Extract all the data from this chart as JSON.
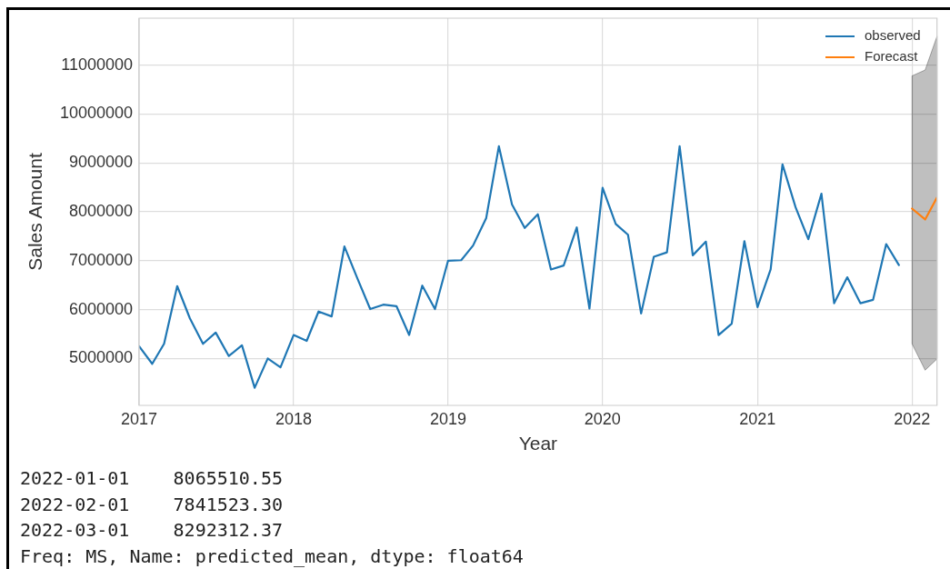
{
  "chart_data": {
    "type": "line",
    "xlabel": "Year",
    "ylabel": "Sales Amount",
    "x": [
      "2017-01",
      "2017-02",
      "2017-03",
      "2017-04",
      "2017-05",
      "2017-06",
      "2017-07",
      "2017-08",
      "2017-09",
      "2017-10",
      "2017-11",
      "2017-12",
      "2018-01",
      "2018-02",
      "2018-03",
      "2018-04",
      "2018-05",
      "2018-06",
      "2018-07",
      "2018-08",
      "2018-09",
      "2018-10",
      "2018-11",
      "2018-12",
      "2019-01",
      "2019-02",
      "2019-03",
      "2019-04",
      "2019-05",
      "2019-06",
      "2019-07",
      "2019-08",
      "2019-09",
      "2019-10",
      "2019-11",
      "2019-12",
      "2020-01",
      "2020-02",
      "2020-03",
      "2020-04",
      "2020-05",
      "2020-06",
      "2020-07",
      "2020-08",
      "2020-09",
      "2020-10",
      "2020-11",
      "2020-12",
      "2021-01",
      "2021-02",
      "2021-03",
      "2021-04",
      "2021-05",
      "2021-06",
      "2021-07",
      "2021-08",
      "2021-09",
      "2021-10",
      "2021-11",
      "2021-12"
    ],
    "series": [
      {
        "name": "observed",
        "color": "#1f77b4",
        "values": [
          5250000,
          4890000,
          5300000,
          6480000,
          5820000,
          5300000,
          5530000,
          5050000,
          5270000,
          4400000,
          5000000,
          4820000,
          5480000,
          5360000,
          5960000,
          5860000,
          7290000,
          6630000,
          6010000,
          6100000,
          6070000,
          5480000,
          6490000,
          6010000,
          7000000,
          7010000,
          7310000,
          7870000,
          9340000,
          8150000,
          7670000,
          7950000,
          6820000,
          6900000,
          7680000,
          6020000,
          8490000,
          7750000,
          7530000,
          5920000,
          7080000,
          7170000,
          9340000,
          7110000,
          7390000,
          5480000,
          5710000,
          7400000,
          6050000,
          6820000,
          8970000,
          8090000,
          7440000,
          8370000,
          6130000,
          6660000,
          6130000,
          6200000,
          7340000,
          6910000
        ]
      },
      {
        "name": "Forecast",
        "color": "#ff7f0e",
        "x": [
          "2022-01",
          "2022-02",
          "2022-03"
        ],
        "values": [
          8065510.55,
          7841523.3,
          8292312.37
        ],
        "lower": [
          5300000,
          4760000,
          4990000
        ],
        "upper": [
          10780000,
          10900000,
          11590000
        ]
      }
    ],
    "xlim": [
      "2017-01",
      "2022-03"
    ],
    "xticks": [
      "2017",
      "2018",
      "2019",
      "2020",
      "2021",
      "2022"
    ],
    "ylim": [
      4040000,
      11960000
    ],
    "yticks": [
      5000000,
      6000000,
      7000000,
      8000000,
      9000000,
      10000000,
      11000000
    ],
    "grid": true,
    "legend": "top right",
    "annotations": [
      "2022-01-01    8065510.55",
      "2022-02-01    7841523.30",
      "2022-03-01    8292312.37",
      "Freq: MS, Name: predicted_mean, dtype: float64"
    ]
  }
}
